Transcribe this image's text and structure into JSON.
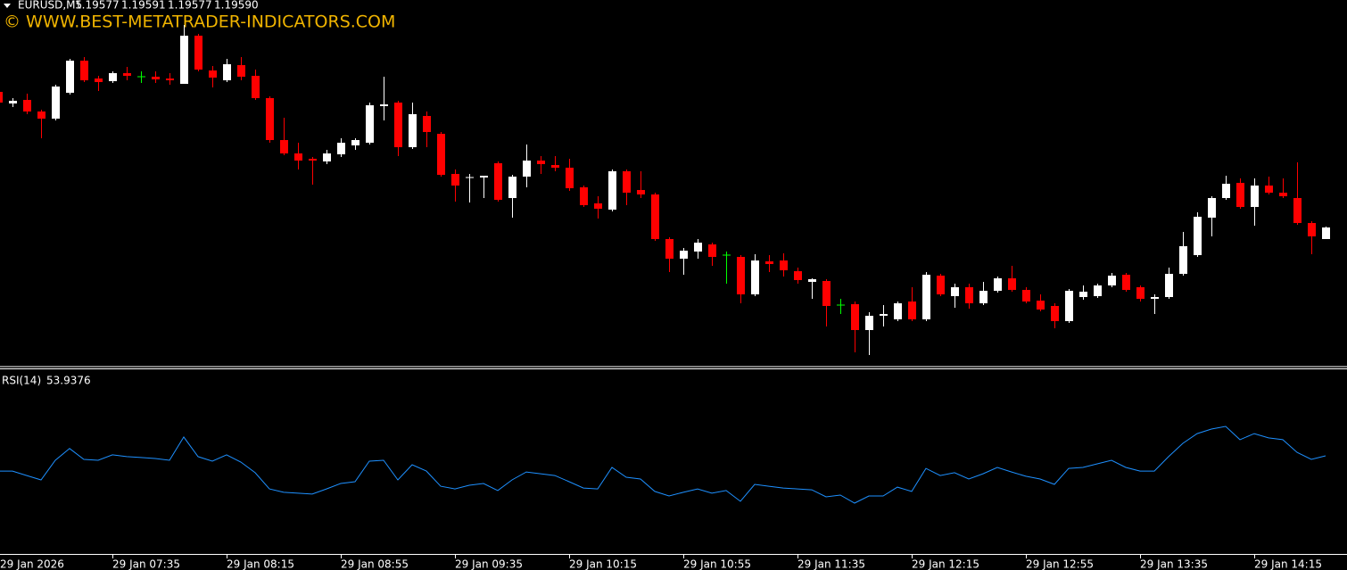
{
  "chart_data": [
    {
      "type": "candlestick",
      "title": "EURUSD,M5",
      "info": [
        "1.19577",
        "1.19591",
        "1.19577",
        "1.19590"
      ],
      "watermark": "© WWW.BEST-METATRADER-INDICATORS.COM",
      "up_color": "#ffffff",
      "down_color": "#ff0000",
      "doji_color": "#00ff00",
      "ylim": [
        1.19435,
        1.19845
      ],
      "categories": [
        "29 Jan 2026",
        null,
        null,
        null,
        null,
        null,
        null,
        null,
        "29 Jan 07:35",
        null,
        null,
        null,
        null,
        null,
        null,
        null,
        "29 Jan 08:15",
        null,
        null,
        null,
        null,
        null,
        null,
        null,
        "29 Jan 08:55",
        null,
        null,
        null,
        null,
        null,
        null,
        null,
        "29 Jan 09:35",
        null,
        null,
        null,
        null,
        null,
        null,
        null,
        "29 Jan 10:15",
        null,
        null,
        null,
        null,
        null,
        null,
        null,
        "29 Jan 10:55",
        null,
        null,
        null,
        null,
        null,
        null,
        null,
        "29 Jan 11:35",
        null,
        null,
        null,
        null,
        null,
        null,
        null,
        "29 Jan 12:15",
        null,
        null,
        null,
        null,
        null,
        null,
        null,
        "29 Jan 12:55",
        null,
        null,
        null,
        null,
        null,
        null,
        null,
        "29 Jan 13:35",
        null,
        null,
        null,
        null,
        null,
        null,
        null,
        "29 Jan 14:15",
        null,
        null,
        null,
        null,
        null
      ],
      "ohlc": [
        [
          1.19742,
          1.19745,
          1.19727,
          1.1973
        ],
        [
          1.19729,
          1.19735,
          1.19725,
          1.19732
        ],
        [
          1.19733,
          1.1974,
          1.19717,
          1.1972
        ],
        [
          1.1972,
          1.19722,
          1.1969,
          1.19712
        ],
        [
          1.19712,
          1.1975,
          1.1971,
          1.19748
        ],
        [
          1.19741,
          1.19779,
          1.19739,
          1.19777
        ],
        [
          1.19777,
          1.19781,
          1.19753,
          1.19755
        ],
        [
          1.19757,
          1.1976,
          1.19743,
          1.19753
        ],
        [
          1.19754,
          1.19765,
          1.19752,
          1.19763
        ],
        [
          1.19763,
          1.1977,
          1.19755,
          1.1976
        ],
        [
          1.19759,
          1.19765,
          1.19752,
          1.19759
        ],
        [
          1.19759,
          1.19765,
          1.19752,
          1.19756
        ],
        [
          1.19757,
          1.19763,
          1.1975,
          1.19755
        ],
        [
          1.19751,
          1.19817,
          1.19751,
          1.19805
        ],
        [
          1.19805,
          1.19807,
          1.19765,
          1.19767
        ],
        [
          1.19766,
          1.19771,
          1.19747,
          1.19758
        ],
        [
          1.19755,
          1.19779,
          1.19753,
          1.19773
        ],
        [
          1.19772,
          1.19781,
          1.19755,
          1.19759
        ],
        [
          1.1976,
          1.19767,
          1.19733,
          1.19735
        ],
        [
          1.19735,
          1.19737,
          1.19685,
          1.19688
        ],
        [
          1.19688,
          1.19713,
          1.19671,
          1.19673
        ],
        [
          1.19673,
          1.19685,
          1.19655,
          1.19665
        ],
        [
          1.19667,
          1.19669,
          1.19638,
          1.19665
        ],
        [
          1.19664,
          1.19677,
          1.19661,
          1.19673
        ],
        [
          1.19672,
          1.1969,
          1.19669,
          1.19685
        ],
        [
          1.19682,
          1.1969,
          1.19677,
          1.19688
        ],
        [
          1.19685,
          1.1973,
          1.19683,
          1.19727
        ],
        [
          1.19726,
          1.19759,
          1.1971,
          1.19728
        ],
        [
          1.1973,
          1.19732,
          1.1967,
          1.1968
        ],
        [
          1.1968,
          1.1973,
          1.19678,
          1.19717
        ],
        [
          1.19715,
          1.1972,
          1.1968,
          1.19697
        ],
        [
          1.19695,
          1.19697,
          1.19647,
          1.19649
        ],
        [
          1.1965,
          1.19655,
          1.19619,
          1.19637
        ],
        [
          1.19646,
          1.1965,
          1.19618,
          1.19647
        ],
        [
          1.19646,
          1.19648,
          1.19623,
          1.19648
        ],
        [
          1.19662,
          1.19664,
          1.19619,
          1.19621
        ],
        [
          1.19623,
          1.19649,
          1.19601,
          1.19647
        ],
        [
          1.19647,
          1.19683,
          1.19635,
          1.19665
        ],
        [
          1.19665,
          1.1967,
          1.1965,
          1.19661
        ],
        [
          1.1966,
          1.1967,
          1.19653,
          1.19657
        ],
        [
          1.19657,
          1.19667,
          1.19631,
          1.19634
        ],
        [
          1.19635,
          1.19637,
          1.19613,
          1.19615
        ],
        [
          1.19617,
          1.19625,
          1.196,
          1.19611
        ],
        [
          1.1961,
          1.19655,
          1.19608,
          1.19653
        ],
        [
          1.19653,
          1.19655,
          1.19615,
          1.19629
        ],
        [
          1.19632,
          1.19653,
          1.19623,
          1.19627
        ],
        [
          1.19627,
          1.19629,
          1.19575,
          1.19577
        ],
        [
          1.19577,
          1.19579,
          1.1954,
          1.19555
        ],
        [
          1.19555,
          1.19567,
          1.19537,
          1.19564
        ],
        [
          1.19563,
          1.19577,
          1.19555,
          1.19573
        ],
        [
          1.19571,
          1.19573,
          1.19547,
          1.19557
        ],
        [
          1.19559,
          1.19563,
          1.19527,
          1.19559
        ],
        [
          1.19557,
          1.19559,
          1.19505,
          1.19515
        ],
        [
          1.19515,
          1.1956,
          1.19513,
          1.19553
        ],
        [
          1.19552,
          1.19559,
          1.1954,
          1.19549
        ],
        [
          1.19553,
          1.19561,
          1.19535,
          1.19542
        ],
        [
          1.19541,
          1.19545,
          1.19527,
          1.19531
        ],
        [
          1.19529,
          1.19533,
          1.1951,
          1.19532
        ],
        [
          1.1953,
          1.19532,
          1.19479,
          1.19502
        ],
        [
          1.19503,
          1.1951,
          1.19493,
          1.19503
        ],
        [
          1.19504,
          1.19507,
          1.1945,
          1.19475
        ],
        [
          1.19475,
          1.19495,
          1.19447,
          1.19491
        ],
        [
          1.19491,
          1.19503,
          1.19479,
          1.19493
        ],
        [
          1.19487,
          1.19507,
          1.19485,
          1.19505
        ],
        [
          1.19507,
          1.19523,
          1.19485,
          1.19487
        ],
        [
          1.19487,
          1.1954,
          1.19485,
          1.19537
        ],
        [
          1.19536,
          1.19538,
          1.19513,
          1.19515
        ],
        [
          1.19513,
          1.19527,
          1.195,
          1.19523
        ],
        [
          1.19523,
          1.19527,
          1.19499,
          1.19505
        ],
        [
          1.19505,
          1.19529,
          1.19503,
          1.19519
        ],
        [
          1.19519,
          1.19535,
          1.19517,
          1.19533
        ],
        [
          1.19533,
          1.19547,
          1.19518,
          1.1952
        ],
        [
          1.1952,
          1.19523,
          1.19505,
          1.19507
        ],
        [
          1.19508,
          1.19515,
          1.19496,
          1.19498
        ],
        [
          1.19502,
          1.19505,
          1.19477,
          1.19485
        ],
        [
          1.19485,
          1.19521,
          1.19483,
          1.19519
        ],
        [
          1.19512,
          1.19525,
          1.19509,
          1.19518
        ],
        [
          1.19513,
          1.19527,
          1.19511,
          1.19525
        ],
        [
          1.19525,
          1.19539,
          1.19523,
          1.19536
        ],
        [
          1.19537,
          1.19539,
          1.19518,
          1.1952
        ],
        [
          1.19523,
          1.19525,
          1.19507,
          1.1951
        ],
        [
          1.1951,
          1.19515,
          1.19493,
          1.19512
        ],
        [
          1.19512,
          1.19545,
          1.1951,
          1.19538
        ],
        [
          1.19538,
          1.19585,
          1.19536,
          1.19569
        ],
        [
          1.19559,
          1.19607,
          1.19557,
          1.19602
        ],
        [
          1.19601,
          1.19625,
          1.1958,
          1.19623
        ],
        [
          1.19623,
          1.19648,
          1.19621,
          1.19639
        ],
        [
          1.1964,
          1.19645,
          1.19611,
          1.19613
        ],
        [
          1.19613,
          1.19645,
          1.19592,
          1.19637
        ],
        [
          1.19637,
          1.19647,
          1.19627,
          1.19629
        ],
        [
          1.19629,
          1.19645,
          1.19623,
          1.19625
        ],
        [
          1.19623,
          1.19663,
          1.19593,
          1.19595
        ],
        [
          1.19595,
          1.19597,
          1.1956,
          1.1958
        ],
        [
          1.19577,
          1.19591,
          1.19577,
          1.1959
        ]
      ]
    },
    {
      "type": "line",
      "title": "RSI(14)",
      "color": "#1e90ff",
      "ylim": [
        0,
        100
      ],
      "values": [
        45.5,
        45.5,
        43,
        40.6,
        51.5,
        58,
        52,
        51.5,
        54.5,
        53.5,
        53,
        52.5,
        51.5,
        64.4,
        53.5,
        51,
        54.5,
        50.5,
        44.6,
        35.6,
        33.7,
        33.2,
        32.7,
        35.6,
        38.6,
        39.6,
        51,
        51.5,
        40.6,
        49,
        45.5,
        37.1,
        35.6,
        37.6,
        38.6,
        34.7,
        40.6,
        45,
        44,
        43,
        39.6,
        36.1,
        35.6,
        47.5,
        42.1,
        41.1,
        34.2,
        31.7,
        33.7,
        35.6,
        33.2,
        34.7,
        28.7,
        38.1,
        37.1,
        36.1,
        35.6,
        35.1,
        31.2,
        32.2,
        27.7,
        31.7,
        31.7,
        36.6,
        34.2,
        47,
        43,
        44.6,
        41.1,
        44,
        47.5,
        45,
        42.6,
        41.1,
        38.1,
        47,
        47.5,
        49.5,
        51.5,
        47.5,
        45.5,
        45.5,
        53.5,
        60.9,
        66.3,
        68.8,
        70.3,
        62.9,
        66.3,
        63.9,
        62.9,
        55.9,
        52,
        53.9376
      ]
    }
  ]
}
